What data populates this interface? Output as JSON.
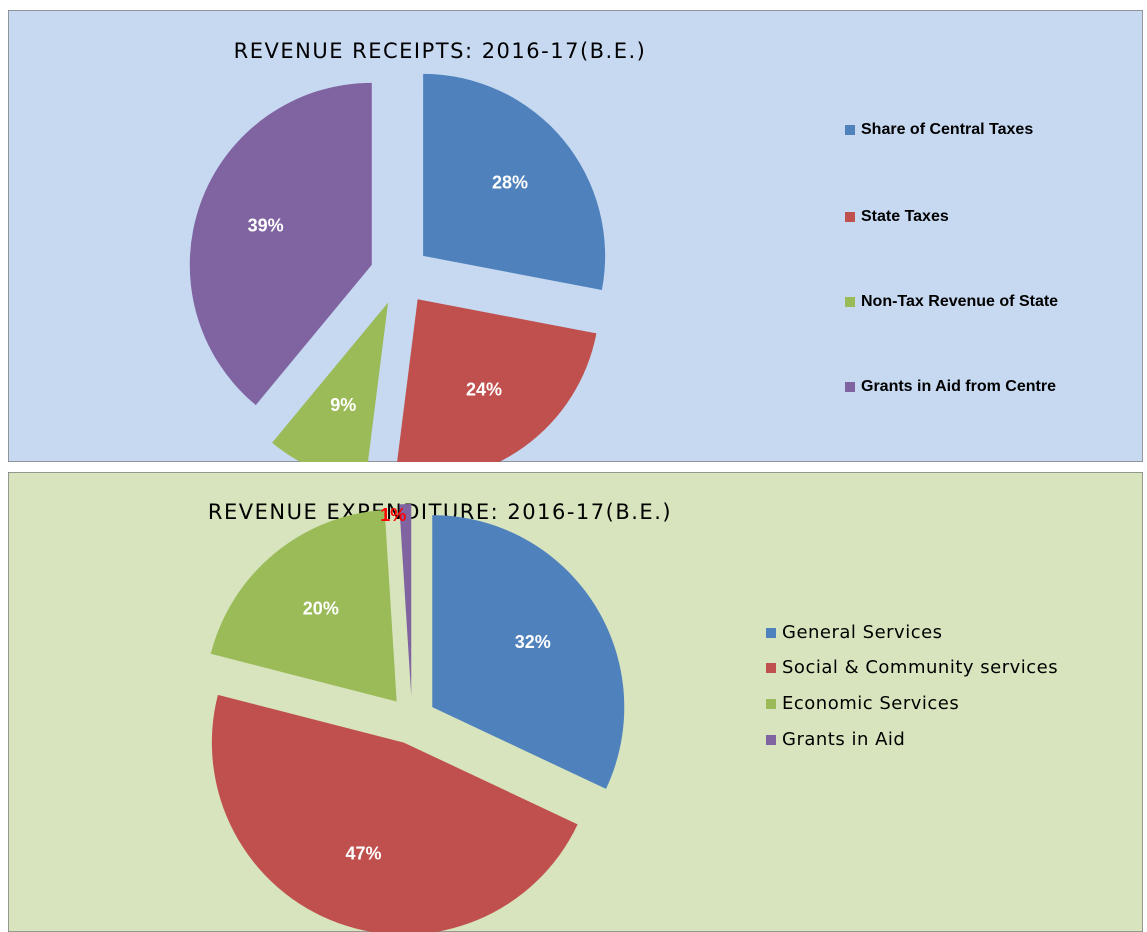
{
  "chart_data": [
    {
      "type": "pie",
      "title": "REVENUE RECEIPTS: 2016-17(B.E.)",
      "categories": [
        "Share of Central Taxes",
        "State Taxes",
        "Non-Tax Revenue of State",
        "Grants in Aid from Centre"
      ],
      "values": [
        28,
        24,
        9,
        39
      ],
      "value_labels": [
        "28%",
        "24%",
        "9%",
        "39%"
      ],
      "colors": [
        "#4f81bd",
        "#c0504d",
        "#9bbb59",
        "#8064a2"
      ],
      "legend": "right"
    },
    {
      "type": "pie",
      "title": "REVENUE EXPENDITURE: 2016-17(B.E.)",
      "categories": [
        "General Services",
        "Social & Community services",
        "Economic Services",
        "Grants in Aid"
      ],
      "values": [
        32,
        47,
        20,
        1
      ],
      "value_labels": [
        "32%",
        "47%",
        "20%",
        "1%"
      ],
      "colors": [
        "#4f81bd",
        "#c0504d",
        "#9bbb59",
        "#8064a2"
      ],
      "value_label_colors": [
        "#ffffff",
        "#ffffff",
        "#ffffff",
        "#ff0000"
      ],
      "legend": "right"
    }
  ]
}
